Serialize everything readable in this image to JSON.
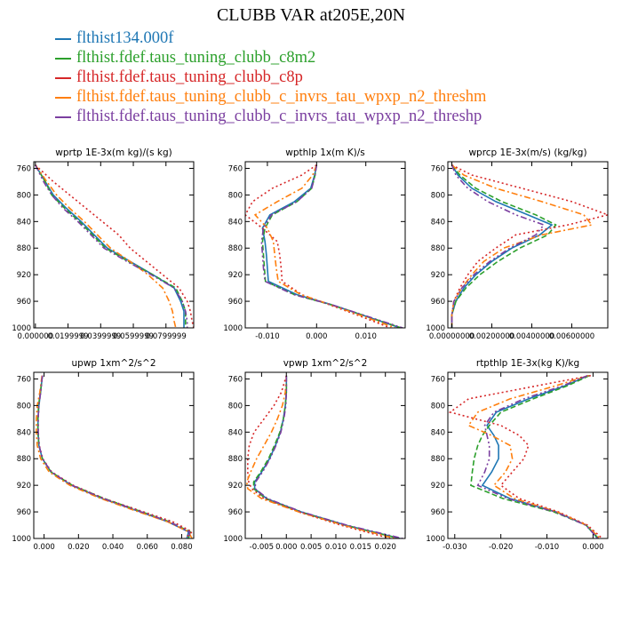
{
  "title": "CLUBB VAR at205E,20N",
  "legend": [
    {
      "name": "flthist134.000f",
      "color": "#1f77b4"
    },
    {
      "name": "flthist.fdef.taus_tuning_clubb_c8m2",
      "color": "#2ca02c"
    },
    {
      "name": "flthist.fdef.taus_tuning_clubb_c8p",
      "color": "#d62728"
    },
    {
      "name": "flthist.fdef.taus_tuning_clubb_c_invrs_tau_wpxp_n2_threshm",
      "color": "#ff7f0e"
    },
    {
      "name": "flthist.fdef.taus_tuning_clubb_c_invrs_tau_wpxp_n2_threshp",
      "color": "#7b3fa0"
    }
  ],
  "chart_data": [
    {
      "type": "line",
      "title": "wprtp  1E-3x(m kg)/(s kg)",
      "xlim": [
        -0.001,
        0.097
      ],
      "ylim": [
        1000,
        750
      ],
      "xticks": [
        {
          "v": 0.0,
          "label": "0.000000"
        },
        {
          "v": 0.02,
          "label": "0.0199999"
        },
        {
          "v": 0.04,
          "label": "0.0399999"
        },
        {
          "v": 0.06,
          "label": "0.0599999"
        },
        {
          "v": 0.08,
          "label": "0.0799999"
        }
      ],
      "yticks": [
        760,
        800,
        840,
        880,
        920,
        960,
        1000
      ],
      "y": [
        755,
        780,
        800,
        820,
        840,
        860,
        880,
        900,
        920,
        940,
        960,
        975,
        990,
        1000
      ],
      "series": [
        {
          "name": "flthist134.000f",
          "values": [
            0.0,
            0.006,
            0.011,
            0.019,
            0.028,
            0.036,
            0.044,
            0.058,
            0.072,
            0.085,
            0.089,
            0.091,
            0.091,
            0.091
          ]
        },
        {
          "name": "flthist.fdef.taus_tuning_clubb_c8m2",
          "values": [
            0.0,
            0.006,
            0.01,
            0.018,
            0.027,
            0.035,
            0.043,
            0.057,
            0.072,
            0.086,
            0.09,
            0.092,
            0.092,
            0.092
          ]
        },
        {
          "name": "flthist.fdef.taus_tuning_clubb_c8p",
          "values": [
            0.0,
            0.011,
            0.021,
            0.031,
            0.041,
            0.051,
            0.058,
            0.068,
            0.078,
            0.088,
            0.093,
            0.095,
            0.096,
            0.097
          ]
        },
        {
          "name": "flthist.fdef.taus_tuning_clubb_c_invrs_tau_wpxp_n2_threshm",
          "values": [
            0.0,
            0.007,
            0.013,
            0.021,
            0.03,
            0.038,
            0.046,
            0.058,
            0.069,
            0.078,
            0.082,
            0.084,
            0.085,
            0.086
          ]
        },
        {
          "name": "flthist.fdef.taus_tuning_clubb_c_invrs_tau_wpxp_n2_threshp",
          "values": [
            0.0,
            0.005,
            0.01,
            0.017,
            0.026,
            0.034,
            0.042,
            0.056,
            0.071,
            0.085,
            0.09,
            0.092,
            0.093,
            0.093
          ]
        }
      ]
    },
    {
      "type": "line",
      "title": "wpthlp  1x(m K)/s",
      "xlim": [
        -0.0145,
        0.018
      ],
      "ylim": [
        1000,
        750
      ],
      "xticks": [
        {
          "v": -0.01,
          "label": "-0.010"
        },
        {
          "v": 0.0,
          "label": "0.000"
        },
        {
          "v": 0.01,
          "label": "0.010"
        }
      ],
      "yticks": [
        760,
        800,
        840,
        880,
        920,
        960,
        1000
      ],
      "y": [
        755,
        770,
        790,
        810,
        830,
        850,
        870,
        890,
        910,
        930,
        950,
        965,
        980,
        1000
      ],
      "series": [
        {
          "name": "flthist134.000f",
          "values": [
            0.0,
            -0.0004,
            -0.0012,
            -0.0045,
            -0.0095,
            -0.011,
            -0.0105,
            -0.0102,
            -0.01,
            -0.0098,
            -0.004,
            0.003,
            0.009,
            0.017
          ]
        },
        {
          "name": "flthist.fdef.taus_tuning_clubb_c8m2",
          "values": [
            0.0,
            -0.0003,
            -0.001,
            -0.004,
            -0.009,
            -0.0105,
            -0.011,
            -0.0108,
            -0.0106,
            -0.0104,
            -0.0045,
            0.0028,
            0.009,
            0.0172
          ]
        },
        {
          "name": "flthist.fdef.taus_tuning_clubb_c8p",
          "values": [
            0.0,
            -0.003,
            -0.009,
            -0.013,
            -0.0145,
            -0.011,
            -0.008,
            -0.0075,
            -0.0072,
            -0.007,
            -0.003,
            0.0025,
            0.008,
            0.015
          ]
        },
        {
          "name": "flthist.fdef.taus_tuning_clubb_c_invrs_tau_wpxp_n2_threshm",
          "values": [
            0.0,
            -0.0008,
            -0.003,
            -0.008,
            -0.0125,
            -0.01,
            -0.0088,
            -0.0085,
            -0.0082,
            -0.0078,
            -0.0032,
            0.0028,
            0.0085,
            0.016
          ]
        },
        {
          "name": "flthist.fdef.taus_tuning_clubb_c_invrs_tau_wpxp_n2_threshp",
          "values": [
            0.0,
            -0.0003,
            -0.001,
            -0.004,
            -0.0092,
            -0.0108,
            -0.0112,
            -0.011,
            -0.0108,
            -0.0105,
            -0.0046,
            0.003,
            0.0092,
            0.0175
          ]
        }
      ]
    },
    {
      "type": "line",
      "title": "wprcp  1E-3x(m/s) (kg/kg)",
      "xlim": [
        -0.0002,
        0.0078
      ],
      "ylim": [
        1000,
        750
      ],
      "xticks": [
        {
          "v": 0.0,
          "label": "0.00000000"
        },
        {
          "v": 0.002,
          "label": "0.00200000"
        },
        {
          "v": 0.004,
          "label": "0.00400000"
        },
        {
          "v": 0.006,
          "label": "0.00600000"
        }
      ],
      "yticks": [
        760,
        800,
        840,
        880,
        920,
        960,
        1000
      ],
      "y": [
        755,
        770,
        790,
        810,
        830,
        845,
        860,
        880,
        900,
        920,
        940,
        960,
        980,
        1000
      ],
      "series": [
        {
          "name": "flthist134.000f",
          "values": [
            0.0,
            0.0003,
            0.001,
            0.0022,
            0.0038,
            0.005,
            0.0044,
            0.003,
            0.002,
            0.0012,
            0.0006,
            0.0002,
            0.0,
            0.0
          ]
        },
        {
          "name": "flthist.fdef.taus_tuning_clubb_c8m2",
          "values": [
            0.0,
            0.0004,
            0.0012,
            0.0025,
            0.0042,
            0.0052,
            0.0048,
            0.0034,
            0.0023,
            0.0014,
            0.0007,
            0.0002,
            0.0,
            0.0
          ]
        },
        {
          "name": "flthist.fdef.taus_tuning_clubb_c8p",
          "values": [
            0.0,
            0.001,
            0.0035,
            0.006,
            0.0078,
            0.0058,
            0.0032,
            0.0022,
            0.0013,
            0.0008,
            0.0004,
            0.0001,
            0.0,
            0.0
          ]
        },
        {
          "name": "flthist.fdef.taus_tuning_clubb_c_invrs_tau_wpxp_n2_threshm",
          "values": [
            0.0,
            0.0006,
            0.0022,
            0.0045,
            0.0066,
            0.007,
            0.0045,
            0.0026,
            0.0016,
            0.001,
            0.0005,
            0.0001,
            0.0,
            0.0
          ]
        },
        {
          "name": "flthist.fdef.taus_tuning_clubb_c_invrs_tau_wpxp_n2_threshp",
          "values": [
            0.0,
            0.0002,
            0.0008,
            0.0018,
            0.0032,
            0.0046,
            0.0042,
            0.0029,
            0.0019,
            0.0011,
            0.0005,
            0.0001,
            0.0,
            0.0
          ]
        }
      ]
    },
    {
      "type": "line",
      "title": "upwp  1xm^2/s^2",
      "xlim": [
        -0.006,
        0.087
      ],
      "ylim": [
        1000,
        750
      ],
      "xticks": [
        {
          "v": 0.0,
          "label": "0.000"
        },
        {
          "v": 0.02,
          "label": "0.020"
        },
        {
          "v": 0.04,
          "label": "0.040"
        },
        {
          "v": 0.06,
          "label": "0.060"
        },
        {
          "v": 0.08,
          "label": "0.080"
        }
      ],
      "yticks": [
        760,
        800,
        840,
        880,
        920,
        960,
        1000
      ],
      "y": [
        755,
        780,
        800,
        820,
        840,
        860,
        880,
        900,
        920,
        940,
        960,
        975,
        990,
        1000
      ],
      "series": [
        {
          "name": "flthist134.000f",
          "values": [
            -0.001,
            -0.002,
            -0.003,
            -0.0035,
            -0.0035,
            -0.003,
            -0.001,
            0.004,
            0.016,
            0.034,
            0.056,
            0.072,
            0.084,
            0.083
          ]
        },
        {
          "name": "flthist.fdef.taus_tuning_clubb_c8m2",
          "values": [
            -0.001,
            -0.0022,
            -0.0032,
            -0.0036,
            -0.0036,
            -0.003,
            -0.001,
            0.004,
            0.0165,
            0.035,
            0.057,
            0.073,
            0.085,
            0.084
          ]
        },
        {
          "name": "flthist.fdef.taus_tuning_clubb_c8p",
          "values": [
            -0.001,
            -0.002,
            -0.003,
            -0.0034,
            -0.0034,
            -0.0028,
            -0.0008,
            0.0045,
            0.017,
            0.035,
            0.058,
            0.075,
            0.086,
            0.082
          ]
        },
        {
          "name": "flthist.fdef.taus_tuning_clubb_c_invrs_tau_wpxp_n2_threshm",
          "values": [
            -0.0012,
            -0.0025,
            -0.004,
            -0.0045,
            -0.0045,
            -0.004,
            -0.002,
            0.003,
            0.015,
            0.033,
            0.055,
            0.072,
            0.084,
            0.086
          ]
        },
        {
          "name": "flthist.fdef.taus_tuning_clubb_c_invrs_tau_wpxp_n2_threshp",
          "values": [
            -0.001,
            -0.002,
            -0.003,
            -0.0035,
            -0.0034,
            -0.0029,
            -0.001,
            0.0042,
            0.0162,
            0.0345,
            0.0565,
            0.073,
            0.0845,
            0.0845
          ]
        }
      ]
    },
    {
      "type": "line",
      "title": "vpwp  1xm^2/s^2",
      "xlim": [
        -0.0083,
        0.024
      ],
      "ylim": [
        1000,
        750
      ],
      "xticks": [
        {
          "v": -0.005,
          "label": "-0.005"
        },
        {
          "v": 0.0,
          "label": "0.000"
        },
        {
          "v": 0.005,
          "label": "0.005"
        },
        {
          "v": 0.01,
          "label": "0.010"
        },
        {
          "v": 0.015,
          "label": "0.015"
        },
        {
          "v": 0.02,
          "label": "0.020"
        }
      ],
      "yticks": [
        760,
        800,
        840,
        880,
        920,
        960,
        1000
      ],
      "y": [
        755,
        780,
        800,
        820,
        840,
        860,
        880,
        900,
        915,
        925,
        940,
        960,
        980,
        1000
      ],
      "series": [
        {
          "name": "flthist134.000f",
          "values": [
            0.0,
            0.0,
            -0.0002,
            -0.0006,
            -0.0012,
            -0.0022,
            -0.0034,
            -0.005,
            -0.0064,
            -0.0064,
            -0.004,
            0.003,
            0.012,
            0.023
          ]
        },
        {
          "name": "flthist.fdef.taus_tuning_clubb_c8m2",
          "values": [
            0.0,
            0.0,
            -0.0002,
            -0.0006,
            -0.0013,
            -0.0024,
            -0.0036,
            -0.0052,
            -0.0066,
            -0.0066,
            -0.0042,
            0.0028,
            0.0118,
            0.0228
          ]
        },
        {
          "name": "flthist.fdef.taus_tuning_clubb_c8p",
          "values": [
            0.0,
            -0.001,
            -0.0025,
            -0.0045,
            -0.0065,
            -0.0075,
            -0.0078,
            -0.0078,
            -0.0076,
            -0.007,
            -0.0045,
            0.0025,
            0.011,
            0.021
          ]
        },
        {
          "name": "flthist.fdef.taus_tuning_clubb_c_invrs_tau_wpxp_n2_threshm",
          "values": [
            0.0,
            -0.0002,
            -0.0008,
            -0.0018,
            -0.003,
            -0.0045,
            -0.006,
            -0.0072,
            -0.008,
            -0.0078,
            -0.005,
            0.0025,
            0.0115,
            0.022
          ]
        },
        {
          "name": "flthist.fdef.taus_tuning_clubb_c_invrs_tau_wpxp_n2_threshp",
          "values": [
            0.0,
            0.0,
            -0.0001,
            -0.0005,
            -0.0011,
            -0.0021,
            -0.0033,
            -0.0048,
            -0.0062,
            -0.0063,
            -0.0038,
            0.0031,
            0.0122,
            0.0235
          ]
        }
      ]
    },
    {
      "type": "line",
      "title": "rtpthlp  1E-3x(kg K)/kg",
      "xlim": [
        -0.0315,
        0.0032
      ],
      "ylim": [
        1000,
        750
      ],
      "xticks": [
        {
          "v": -0.03,
          "label": "-0.030"
        },
        {
          "v": -0.02,
          "label": "-0.020"
        },
        {
          "v": -0.01,
          "label": "-0.010"
        },
        {
          "v": 0.0,
          "label": "0.000"
        }
      ],
      "yticks": [
        760,
        800,
        840,
        880,
        920,
        960,
        1000
      ],
      "y": [
        755,
        770,
        790,
        810,
        830,
        845,
        860,
        880,
        900,
        920,
        940,
        960,
        980,
        1000
      ],
      "series": [
        {
          "name": "flthist134.000f",
          "values": [
            -0.001,
            -0.006,
            -0.014,
            -0.021,
            -0.023,
            -0.0215,
            -0.0205,
            -0.0205,
            -0.022,
            -0.024,
            -0.018,
            -0.008,
            -0.0015,
            0.001
          ]
        },
        {
          "name": "flthist.fdef.taus_tuning_clubb_c8m2",
          "values": [
            -0.0008,
            -0.0055,
            -0.013,
            -0.02,
            -0.0225,
            -0.024,
            -0.025,
            -0.0258,
            -0.0262,
            -0.0265,
            -0.0195,
            -0.0085,
            -0.0015,
            0.0012
          ]
        },
        {
          "name": "flthist.fdef.taus_tuning_clubb_c8p",
          "values": [
            -0.0005,
            -0.012,
            -0.027,
            -0.031,
            -0.02,
            -0.016,
            -0.014,
            -0.015,
            -0.0175,
            -0.02,
            -0.016,
            -0.0075,
            -0.0012,
            0.002
          ]
        },
        {
          "name": "flthist.fdef.taus_tuning_clubb_c_invrs_tau_wpxp_n2_threshm",
          "values": [
            -0.001,
            -0.008,
            -0.018,
            -0.025,
            -0.027,
            -0.022,
            -0.018,
            -0.0175,
            -0.019,
            -0.0215,
            -0.017,
            -0.0078,
            -0.0014,
            0.0015
          ]
        },
        {
          "name": "flthist.fdef.taus_tuning_clubb_c_invrs_tau_wpxp_n2_threshp",
          "values": [
            -0.0012,
            -0.0065,
            -0.015,
            -0.0215,
            -0.0235,
            -0.023,
            -0.0225,
            -0.0225,
            -0.0235,
            -0.025,
            -0.0185,
            -0.0082,
            -0.0016,
            0.0011
          ]
        }
      ]
    }
  ]
}
